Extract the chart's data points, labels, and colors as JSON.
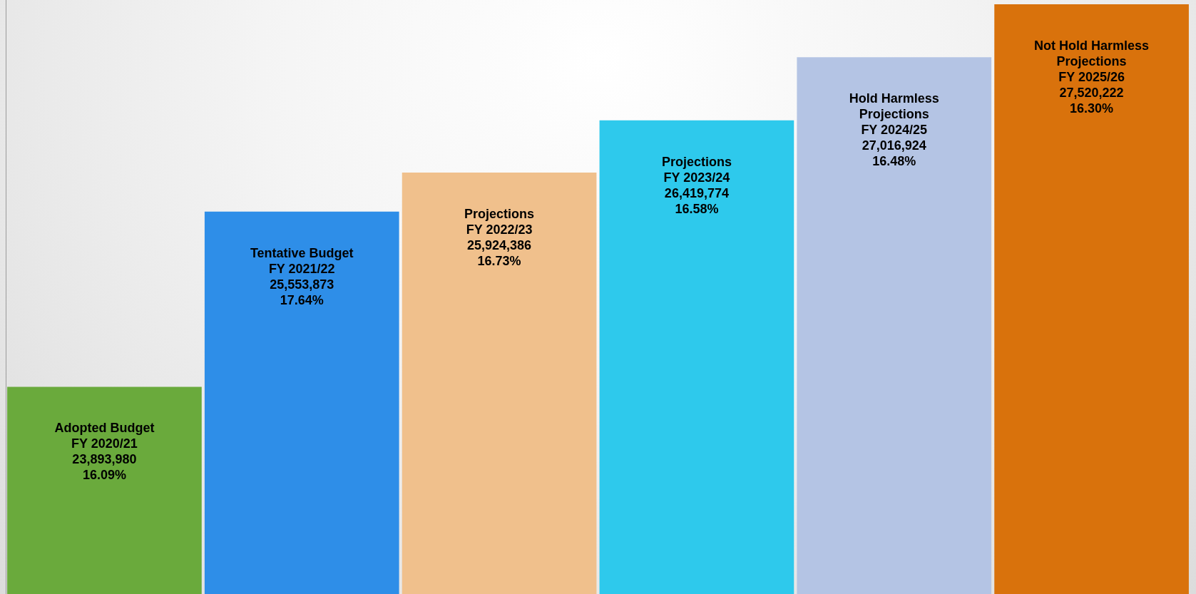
{
  "chart_data": {
    "type": "bar",
    "categories": [
      "Adopted Budget\nFY 2020/21",
      "Tentative Budget\nFY 2021/22",
      "Projections\nFY 2022/23",
      "Projections\nFY 2023/24",
      "Hold Harmless\nProjections\nFY 2024/25",
      "Not Hold Harmless\nProjections\nFY 2025/26"
    ],
    "values": [
      23893980,
      25553873,
      25924386,
      26419774,
      27016924,
      27520222
    ],
    "colors": [
      "#6aaa3c",
      "#2e8ee8",
      "#f0c08c",
      "#2ec9ec",
      "#b4c4e4",
      "#d9720c"
    ],
    "value_labels": [
      "23,893,980\n16.09%",
      "25,553,873\n17.64%",
      "25,924,386\n16.73%",
      "26,419,774\n16.58%",
      "27,016,924\n16.48%",
      "27,520,222\n16.30%"
    ],
    "ylim": [
      21930000,
      27560000
    ],
    "legend": false
  }
}
